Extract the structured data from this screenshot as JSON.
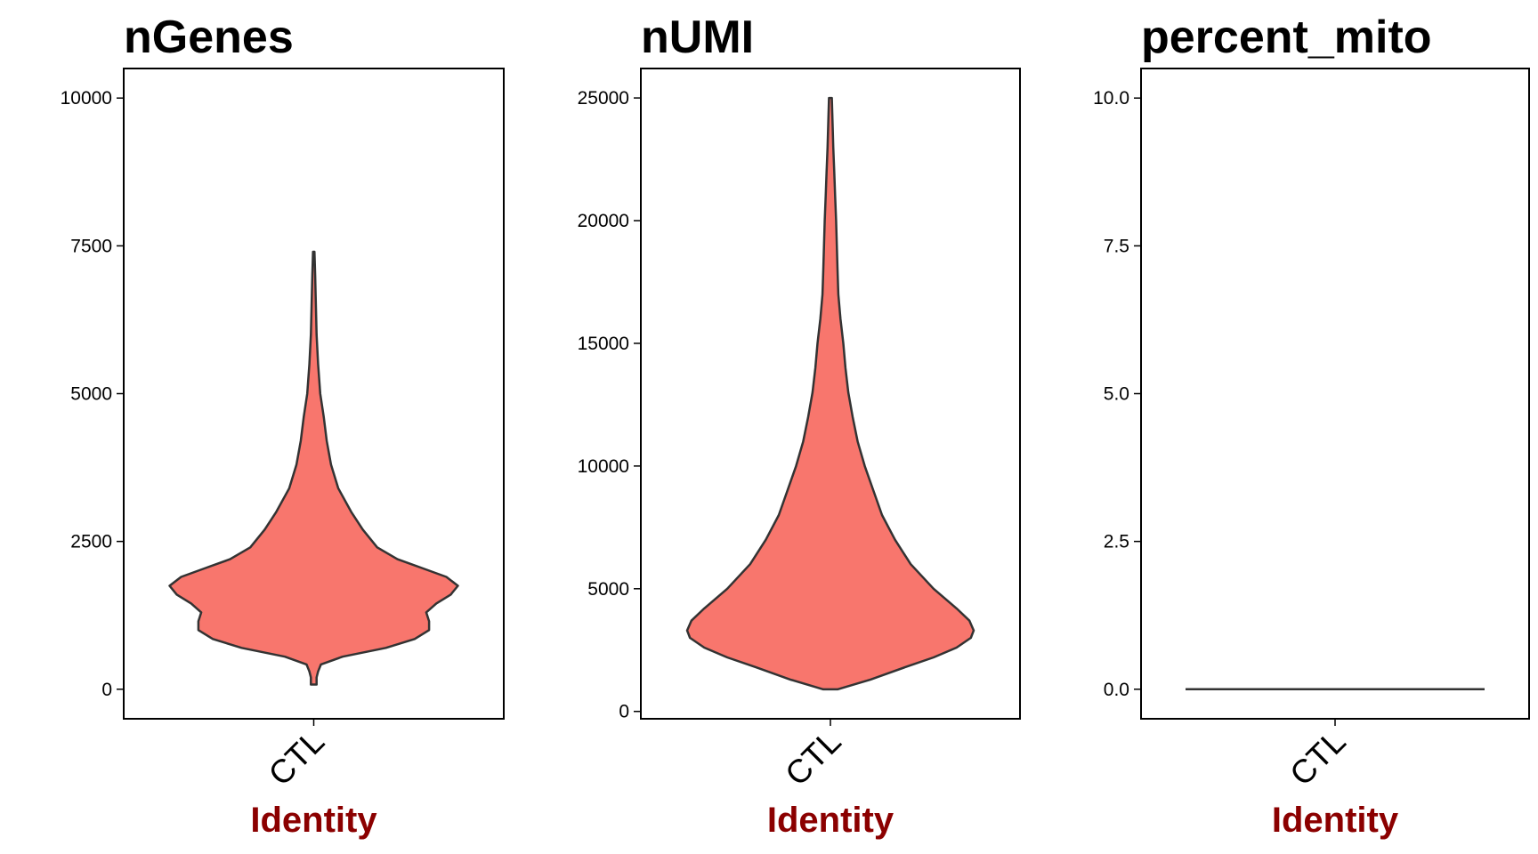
{
  "colors": {
    "violin_fill": "#F8766D",
    "violin_stroke": "#333333",
    "axis_label": "#8B0000"
  },
  "chart_data": [
    {
      "type": "violin",
      "title": "nGenes",
      "xlabel": "Identity",
      "categories": [
        "CTL"
      ],
      "ylim": [
        -500,
        10500
      ],
      "yticks": [
        {
          "value": 0,
          "label": "0"
        },
        {
          "value": 2500,
          "label": "2500"
        },
        {
          "value": 5000,
          "label": "5000"
        },
        {
          "value": 7500,
          "label": "7500"
        },
        {
          "value": 10000,
          "label": "10000"
        }
      ],
      "density": [
        {
          "y": 80,
          "w": 0.02
        },
        {
          "y": 200,
          "w": 0.02
        },
        {
          "y": 300,
          "w": 0.03
        },
        {
          "y": 420,
          "w": 0.05
        },
        {
          "y": 550,
          "w": 0.2
        },
        {
          "y": 700,
          "w": 0.5
        },
        {
          "y": 850,
          "w": 0.7
        },
        {
          "y": 1000,
          "w": 0.8
        },
        {
          "y": 1150,
          "w": 0.8
        },
        {
          "y": 1300,
          "w": 0.78
        },
        {
          "y": 1450,
          "w": 0.85
        },
        {
          "y": 1600,
          "w": 0.95
        },
        {
          "y": 1750,
          "w": 1.0
        },
        {
          "y": 1900,
          "w": 0.92
        },
        {
          "y": 2050,
          "w": 0.75
        },
        {
          "y": 2200,
          "w": 0.58
        },
        {
          "y": 2400,
          "w": 0.44
        },
        {
          "y": 2700,
          "w": 0.34
        },
        {
          "y": 3000,
          "w": 0.26
        },
        {
          "y": 3400,
          "w": 0.17
        },
        {
          "y": 3800,
          "w": 0.12
        },
        {
          "y": 4200,
          "w": 0.09
        },
        {
          "y": 4600,
          "w": 0.07
        },
        {
          "y": 5000,
          "w": 0.045
        },
        {
          "y": 5500,
          "w": 0.03
        },
        {
          "y": 6000,
          "w": 0.02
        },
        {
          "y": 6500,
          "w": 0.015
        },
        {
          "y": 7000,
          "w": 0.01
        },
        {
          "y": 7400,
          "w": 0.005
        }
      ]
    },
    {
      "type": "violin",
      "title": "nUMI",
      "xlabel": "Identity",
      "categories": [
        "CTL"
      ],
      "ylim": [
        -300,
        26200
      ],
      "yticks": [
        {
          "value": 0,
          "label": "0"
        },
        {
          "value": 5000,
          "label": "5000"
        },
        {
          "value": 10000,
          "label": "10000"
        },
        {
          "value": 15000,
          "label": "15000"
        },
        {
          "value": 20000,
          "label": "20000"
        },
        {
          "value": 25000,
          "label": "25000"
        }
      ],
      "density": [
        {
          "y": 900,
          "w": 0.05
        },
        {
          "y": 1300,
          "w": 0.28
        },
        {
          "y": 1800,
          "w": 0.52
        },
        {
          "y": 2200,
          "w": 0.72
        },
        {
          "y": 2600,
          "w": 0.88
        },
        {
          "y": 3000,
          "w": 0.98
        },
        {
          "y": 3300,
          "w": 1.0
        },
        {
          "y": 3700,
          "w": 0.97
        },
        {
          "y": 4200,
          "w": 0.88
        },
        {
          "y": 5000,
          "w": 0.72
        },
        {
          "y": 6000,
          "w": 0.56
        },
        {
          "y": 7000,
          "w": 0.45
        },
        {
          "y": 8000,
          "w": 0.36
        },
        {
          "y": 9000,
          "w": 0.3
        },
        {
          "y": 10000,
          "w": 0.24
        },
        {
          "y": 11000,
          "w": 0.19
        },
        {
          "y": 12000,
          "w": 0.155
        },
        {
          "y": 13000,
          "w": 0.125
        },
        {
          "y": 14000,
          "w": 0.105
        },
        {
          "y": 15000,
          "w": 0.09
        },
        {
          "y": 16000,
          "w": 0.07
        },
        {
          "y": 17000,
          "w": 0.055
        },
        {
          "y": 18000,
          "w": 0.05
        },
        {
          "y": 19000,
          "w": 0.045
        },
        {
          "y": 20000,
          "w": 0.04
        },
        {
          "y": 21000,
          "w": 0.033
        },
        {
          "y": 22000,
          "w": 0.027
        },
        {
          "y": 23000,
          "w": 0.02
        },
        {
          "y": 24000,
          "w": 0.015
        },
        {
          "y": 25000,
          "w": 0.01
        }
      ]
    },
    {
      "type": "violin",
      "title": "percent_mito",
      "xlabel": "Identity",
      "categories": [
        "CTL"
      ],
      "ylim": [
        -0.5,
        10.5
      ],
      "yticks": [
        {
          "value": 0,
          "label": "0.0"
        },
        {
          "value": 2.5,
          "label": "2.5"
        },
        {
          "value": 5,
          "label": "5.0"
        },
        {
          "value": 7.5,
          "label": "7.5"
        },
        {
          "value": 10,
          "label": "10.0"
        }
      ],
      "flat_value": 0
    }
  ]
}
